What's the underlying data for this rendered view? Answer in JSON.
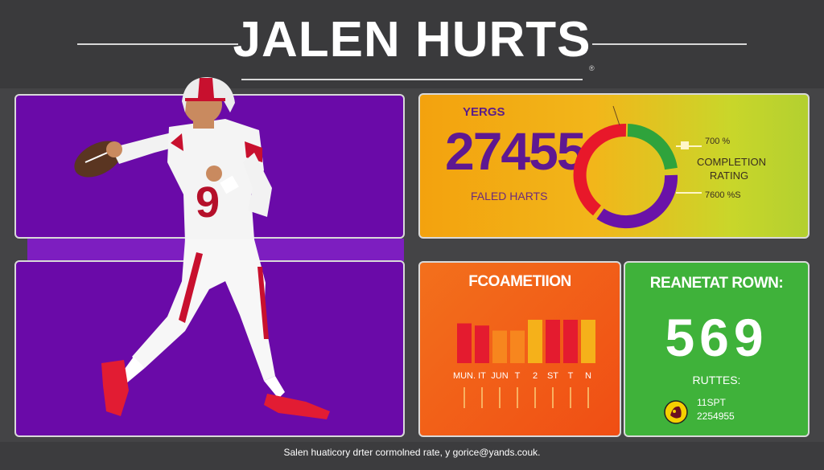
{
  "title": "JALEN HURTS",
  "title_mark": "®",
  "yards": {
    "label": "YERGS",
    "value": "27455",
    "sub": "FALED HARTS"
  },
  "donut": {
    "top_text": "700 %",
    "completion_line1": "COMPLETION",
    "completion_line2": "RATING",
    "bottom_text": "7600 %S",
    "colors": [
      "#e8182a",
      "#2fa33c",
      "#6a12a8"
    ]
  },
  "formation": {
    "title": "FCOAMETIION",
    "bars": [
      {
        "color": "#e41b2f",
        "level": 0.55
      },
      {
        "color": "#e41b2f",
        "level": 0.52
      },
      {
        "color": "#f7861e",
        "level": 0.45
      },
      {
        "color": "#f7861e",
        "level": 0.45
      },
      {
        "color": "#f5b11a",
        "level": 0.6
      },
      {
        "color": "#e41b2f",
        "level": 0.6
      },
      {
        "color": "#e41b2f",
        "level": 0.6
      },
      {
        "color": "#f5b11a",
        "level": 0.6
      }
    ],
    "labels": [
      "MUN.",
      "IT",
      "JUN",
      "T",
      "2",
      "ST",
      "T",
      "N"
    ]
  },
  "rushing": {
    "title": "REANETAT ROWN:",
    "value": "569",
    "sub": "RUTTES:",
    "small_line1": "11SPT",
    "small_line2": "2254955"
  },
  "footer": "Salen huaticory drter cormolned rate, y gorice@yands.couk.",
  "colors": {
    "purple": "#6a0aa8",
    "green": "#3fb23a",
    "orange": "#f3701c",
    "yellow": "#f3a20e"
  }
}
